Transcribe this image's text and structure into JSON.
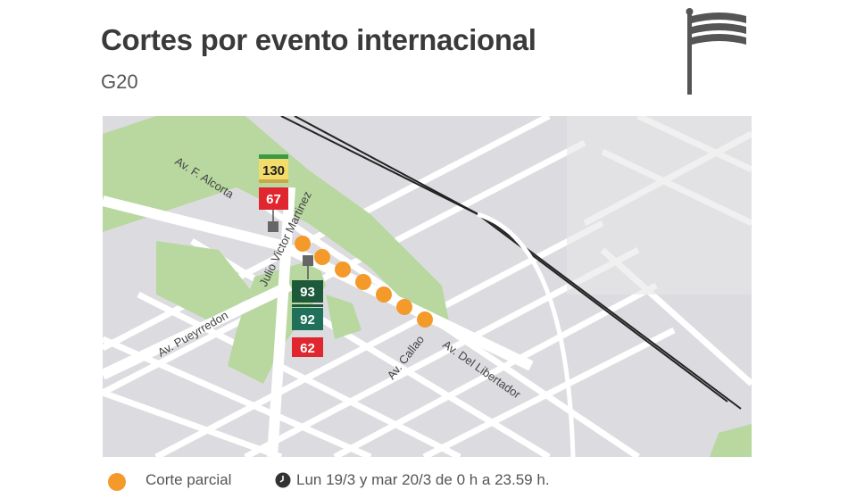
{
  "header": {
    "title": "Cortes por evento internacional",
    "subtitle": "G20",
    "icon": "flag-icon"
  },
  "map": {
    "streets": [
      "Av. F. Alcorta",
      "Julio Victor Martinez",
      "Av. Pueyrredon",
      "Av. Callao",
      "Av. Del Libertador"
    ],
    "bus_lines_north": [
      {
        "number": "130",
        "color": "#f2dd6b"
      },
      {
        "number": "67",
        "color": "#e0262e"
      }
    ],
    "bus_lines_south": [
      {
        "number": "93",
        "color": "#1d5a3c"
      },
      {
        "number": "92",
        "color": "#21715a"
      },
      {
        "number": "62",
        "color": "#e0262e"
      }
    ],
    "colors": {
      "park": "#b8d8a0",
      "block": "#dcdce0",
      "street": "#ffffff",
      "closure": "#f39a2b"
    }
  },
  "legend": {
    "closure_label": "Corte parcial",
    "schedule": "Lun 19/3 y mar 20/3 de 0 h a 23.59 h."
  }
}
